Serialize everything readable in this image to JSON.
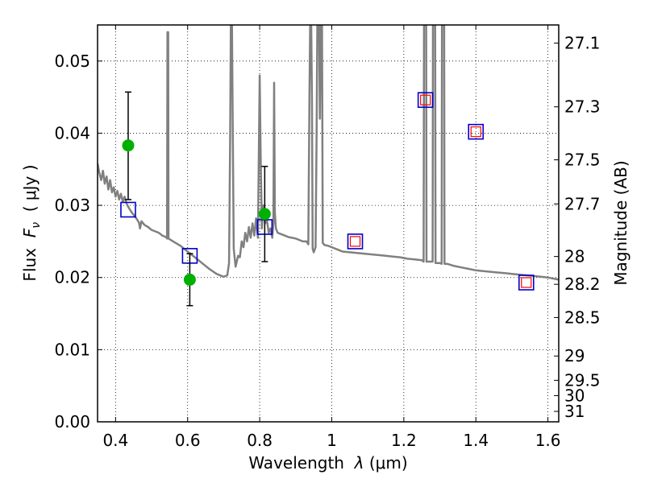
{
  "chart_data": {
    "type": "scatter",
    "xlabel": {
      "prefix": "Wavelength  ",
      "symbol": "λ",
      "unit": " (μm)"
    },
    "ylabel": {
      "prefix": "Flux  ",
      "symbol": "F",
      "subscript": "ν",
      "unit": "  ( μJy )"
    },
    "y2label": "Magnitude (AB)",
    "xlim": [
      0.35,
      1.63
    ],
    "ylim": [
      0.0,
      0.055
    ],
    "grid": true,
    "x_ticks": [
      {
        "value": 0.4,
        "label": "0.4"
      },
      {
        "value": 0.6,
        "label": "0.6"
      },
      {
        "value": 0.8,
        "label": "0.8"
      },
      {
        "value": 1.0,
        "label": "1"
      },
      {
        "value": 1.2,
        "label": "1.2"
      },
      {
        "value": 1.4,
        "label": "1.4"
      },
      {
        "value": 1.6,
        "label": "1.6"
      }
    ],
    "y_ticks": [
      {
        "value": 0.0,
        "label": "0.00"
      },
      {
        "value": 0.01,
        "label": "0.01"
      },
      {
        "value": 0.02,
        "label": "0.02"
      },
      {
        "value": 0.03,
        "label": "0.03"
      },
      {
        "value": 0.04,
        "label": "0.04"
      },
      {
        "value": 0.05,
        "label": "0.05"
      }
    ],
    "y2_ticks": [
      {
        "mag": 27.1,
        "label": "27.1"
      },
      {
        "mag": 27.3,
        "label": "27.3"
      },
      {
        "mag": 27.5,
        "label": "27.5"
      },
      {
        "mag": 27.7,
        "label": "27.7"
      },
      {
        "mag": 28.0,
        "label": "28"
      },
      {
        "mag": 28.2,
        "label": "28.2"
      },
      {
        "mag": 28.5,
        "label": "28.5"
      },
      {
        "mag": 29.0,
        "label": "29"
      },
      {
        "mag": 29.5,
        "label": "29.5"
      },
      {
        "mag": 30.0,
        "label": "30"
      },
      {
        "mag": 31.0,
        "label": "31"
      }
    ],
    "observed": {
      "color": "#00b000",
      "points": [
        {
          "x": 0.435,
          "y": 0.0383,
          "err_low": 0.0308,
          "err_high": 0.0457
        },
        {
          "x": 0.606,
          "y": 0.0197,
          "err_low": 0.0161,
          "err_high": 0.0233
        },
        {
          "x": 0.814,
          "y": 0.0288,
          "err_low": 0.0222,
          "err_high": 0.0354
        }
      ]
    },
    "model_photometry": {
      "color": "#0000cc",
      "points": [
        {
          "x": 0.435,
          "y": 0.0294
        },
        {
          "x": 0.606,
          "y": 0.023
        },
        {
          "x": 0.814,
          "y": 0.027
        },
        {
          "x": 1.065,
          "y": 0.025
        },
        {
          "x": 1.26,
          "y": 0.0446
        },
        {
          "x": 1.4,
          "y": 0.0402
        },
        {
          "x": 1.54,
          "y": 0.0193
        }
      ]
    },
    "model_inner": {
      "color": "#ff0000",
      "points": [
        {
          "x": 1.065,
          "y": 0.025
        },
        {
          "x": 1.26,
          "y": 0.0446
        },
        {
          "x": 1.4,
          "y": 0.0402
        },
        {
          "x": 1.54,
          "y": 0.0193
        }
      ]
    },
    "spectrum": {
      "color": "#808080",
      "points": [
        [
          0.35,
          0.0358
        ],
        [
          0.355,
          0.0345
        ],
        [
          0.36,
          0.0335
        ],
        [
          0.365,
          0.0348
        ],
        [
          0.37,
          0.033
        ],
        [
          0.375,
          0.034
        ],
        [
          0.38,
          0.0322
        ],
        [
          0.385,
          0.0335
        ],
        [
          0.39,
          0.0318
        ],
        [
          0.395,
          0.0325
        ],
        [
          0.4,
          0.0312
        ],
        [
          0.405,
          0.032
        ],
        [
          0.41,
          0.0308
        ],
        [
          0.415,
          0.0316
        ],
        [
          0.42,
          0.0305
        ],
        [
          0.425,
          0.0312
        ],
        [
          0.43,
          0.0303
        ],
        [
          0.435,
          0.0298
        ],
        [
          0.44,
          0.0294
        ],
        [
          0.445,
          0.029
        ],
        [
          0.45,
          0.0287
        ],
        [
          0.455,
          0.0284
        ],
        [
          0.46,
          0.028
        ],
        [
          0.465,
          0.0276
        ],
        [
          0.468,
          0.0268
        ],
        [
          0.472,
          0.0278
        ],
        [
          0.48,
          0.0273
        ],
        [
          0.49,
          0.027
        ],
        [
          0.5,
          0.0266
        ],
        [
          0.51,
          0.0264
        ],
        [
          0.52,
          0.0262
        ],
        [
          0.53,
          0.0258
        ],
        [
          0.54,
          0.0256
        ],
        [
          0.543,
          0.0254
        ],
        [
          0.544,
          0.054
        ],
        [
          0.546,
          0.054
        ],
        [
          0.547,
          0.0254
        ],
        [
          0.56,
          0.025
        ],
        [
          0.58,
          0.0244
        ],
        [
          0.6,
          0.0236
        ],
        [
          0.62,
          0.0228
        ],
        [
          0.64,
          0.022
        ],
        [
          0.66,
          0.0212
        ],
        [
          0.68,
          0.0205
        ],
        [
          0.7,
          0.0201
        ],
        [
          0.71,
          0.0203
        ],
        [
          0.715,
          0.022
        ],
        [
          0.718,
          0.04
        ],
        [
          0.72,
          0.055
        ],
        [
          0.723,
          0.055
        ],
        [
          0.725,
          0.042
        ],
        [
          0.728,
          0.024
        ],
        [
          0.733,
          0.0215
        ],
        [
          0.74,
          0.023
        ],
        [
          0.745,
          0.0228
        ],
        [
          0.75,
          0.025
        ],
        [
          0.755,
          0.0242
        ],
        [
          0.76,
          0.0262
        ],
        [
          0.765,
          0.025
        ],
        [
          0.77,
          0.027
        ],
        [
          0.775,
          0.0255
        ],
        [
          0.78,
          0.0275
        ],
        [
          0.785,
          0.0258
        ],
        [
          0.79,
          0.0282
        ],
        [
          0.795,
          0.0255
        ],
        [
          0.8,
          0.048
        ],
        [
          0.803,
          0.036
        ],
        [
          0.806,
          0.0268
        ],
        [
          0.81,
          0.03
        ],
        [
          0.815,
          0.0275
        ],
        [
          0.82,
          0.028
        ],
        [
          0.825,
          0.0262
        ],
        [
          0.83,
          0.0268
        ],
        [
          0.835,
          0.0255
        ],
        [
          0.838,
          0.0275
        ],
        [
          0.84,
          0.047
        ],
        [
          0.842,
          0.029
        ],
        [
          0.845,
          0.0268
        ],
        [
          0.85,
          0.0262
        ],
        [
          0.86,
          0.026
        ],
        [
          0.87,
          0.0258
        ],
        [
          0.88,
          0.0256
        ],
        [
          0.89,
          0.0255
        ],
        [
          0.9,
          0.0254
        ],
        [
          0.91,
          0.0252
        ],
        [
          0.92,
          0.025
        ],
        [
          0.93,
          0.025
        ],
        [
          0.935,
          0.0246
        ],
        [
          0.938,
          0.045
        ],
        [
          0.94,
          0.055
        ],
        [
          0.943,
          0.055
        ],
        [
          0.945,
          0.045
        ],
        [
          0.947,
          0.024
        ],
        [
          0.95,
          0.0235
        ],
        [
          0.955,
          0.0242
        ],
        [
          0.958,
          0.04
        ],
        [
          0.96,
          0.055
        ],
        [
          0.965,
          0.055
        ],
        [
          0.967,
          0.042
        ],
        [
          0.97,
          0.055
        ],
        [
          0.973,
          0.055
        ],
        [
          0.975,
          0.0248
        ],
        [
          0.98,
          0.0245
        ],
        [
          0.99,
          0.0244
        ],
        [
          1.0,
          0.0242
        ],
        [
          1.01,
          0.024
        ],
        [
          1.02,
          0.0238
        ],
        [
          1.03,
          0.0236
        ],
        [
          1.05,
          0.0235
        ],
        [
          1.07,
          0.0234
        ],
        [
          1.09,
          0.0233
        ],
        [
          1.11,
          0.0232
        ],
        [
          1.13,
          0.0231
        ],
        [
          1.15,
          0.023
        ],
        [
          1.17,
          0.0229
        ],
        [
          1.19,
          0.0228
        ],
        [
          1.21,
          0.0226
        ],
        [
          1.23,
          0.0225
        ],
        [
          1.25,
          0.0224
        ],
        [
          1.255,
          0.0222
        ],
        [
          1.256,
          0.055
        ],
        [
          1.262,
          0.055
        ],
        [
          1.263,
          0.0222
        ],
        [
          1.27,
          0.0222
        ],
        [
          1.28,
          0.0222
        ],
        [
          1.281,
          0.055
        ],
        [
          1.287,
          0.055
        ],
        [
          1.288,
          0.022
        ],
        [
          1.3,
          0.022
        ],
        [
          1.305,
          0.0219
        ],
        [
          1.306,
          0.055
        ],
        [
          1.312,
          0.055
        ],
        [
          1.313,
          0.0219
        ],
        [
          1.32,
          0.0219
        ],
        [
          1.34,
          0.0216
        ],
        [
          1.36,
          0.0214
        ],
        [
          1.38,
          0.0212
        ],
        [
          1.4,
          0.021
        ],
        [
          1.42,
          0.0209
        ],
        [
          1.44,
          0.0208
        ],
        [
          1.46,
          0.0207
        ],
        [
          1.48,
          0.0206
        ],
        [
          1.5,
          0.0205
        ],
        [
          1.52,
          0.0204
        ],
        [
          1.54,
          0.0203
        ],
        [
          1.56,
          0.0202
        ],
        [
          1.58,
          0.0201
        ],
        [
          1.6,
          0.02
        ],
        [
          1.62,
          0.0198
        ],
        [
          1.63,
          0.0197
        ]
      ]
    }
  }
}
